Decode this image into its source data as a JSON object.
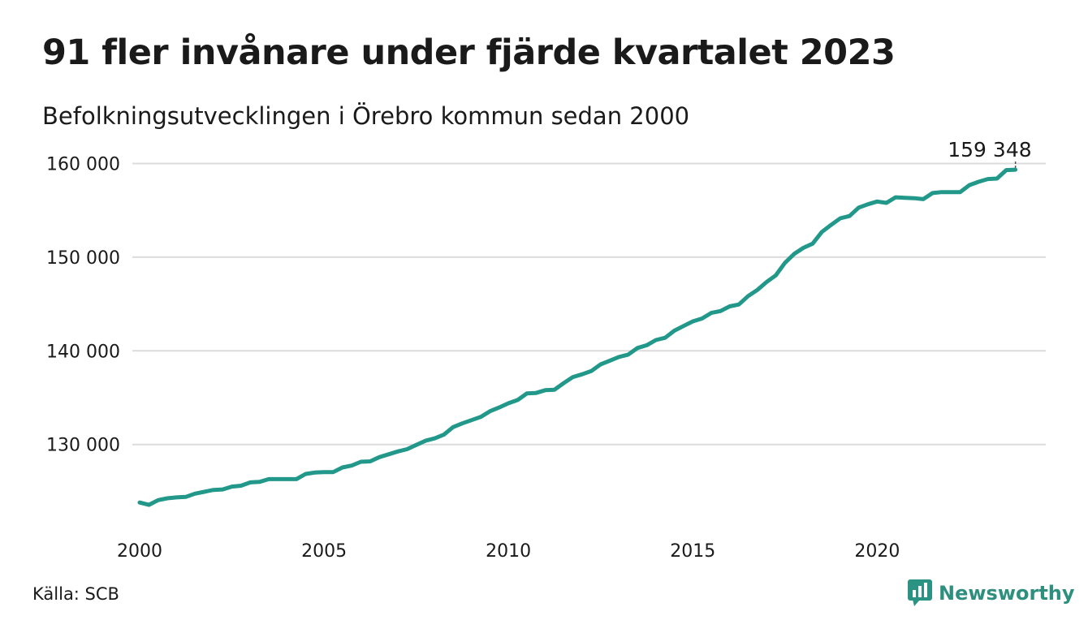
{
  "title": "91 fler invånare under fjärde kvartalet 2023",
  "subtitle": "Befolkningsutvecklingen i Örebro kommun sedan 2000",
  "source": "Källa: SCB",
  "brand": {
    "name": "Newsworthy",
    "color": "#2a9384"
  },
  "colors": {
    "line": "#21988a",
    "grid": "#dcdcdc"
  },
  "chart_data": {
    "type": "line",
    "title": "91 fler invånare under fjärde kvartalet 2023",
    "subtitle": "Befolkningsutvecklingen i Örebro kommun sedan 2000",
    "xlabel": "",
    "ylabel": "",
    "xlim": [
      2000,
      2024
    ],
    "ylim": [
      122000,
      161000
    ],
    "x_ticks": [
      2000,
      2005,
      2010,
      2015,
      2020
    ],
    "x_tick_labels": [
      "2000",
      "2005",
      "2010",
      "2015",
      "2020"
    ],
    "y_ticks": [
      130000,
      140000,
      150000,
      160000
    ],
    "y_tick_labels": [
      "130 000",
      "140 000",
      "150 000",
      "160 000"
    ],
    "grid": true,
    "annotation": {
      "x": 2023.75,
      "y": 159348,
      "label": "159 348"
    },
    "series": [
      {
        "x": [
          2000.0,
          2000.25,
          2000.5,
          2000.75,
          2001.0,
          2001.25,
          2001.5,
          2001.75,
          2002.0,
          2002.25,
          2002.5,
          2002.75,
          2003.0,
          2003.25,
          2003.5,
          2003.75,
          2004.0,
          2004.25,
          2004.5,
          2004.75,
          2005.0,
          2005.25,
          2005.5,
          2005.75,
          2006.0,
          2006.25,
          2006.5,
          2006.75,
          2007.0,
          2007.25,
          2007.5,
          2007.75,
          2008.0,
          2008.25,
          2008.5,
          2008.75,
          2009.0,
          2009.25,
          2009.5,
          2009.75,
          2010.0,
          2010.25,
          2010.5,
          2010.75,
          2011.0,
          2011.25,
          2011.5,
          2011.75,
          2012.0,
          2012.25,
          2012.5,
          2012.75,
          2013.0,
          2013.25,
          2013.5,
          2013.75,
          2014.0,
          2014.25,
          2014.5,
          2014.75,
          2015.0,
          2015.25,
          2015.5,
          2015.75,
          2016.0,
          2016.25,
          2016.5,
          2016.75,
          2017.0,
          2017.25,
          2017.5,
          2017.75,
          2018.0,
          2018.25,
          2018.5,
          2018.75,
          2019.0,
          2019.25,
          2019.5,
          2019.75,
          2020.0,
          2020.25,
          2020.5,
          2020.75,
          2021.0,
          2021.25,
          2021.5,
          2021.75,
          2022.0,
          2022.25,
          2022.5,
          2022.75,
          2023.0,
          2023.25,
          2023.5,
          2023.75
        ],
        "values": [
          123800,
          123550,
          124050,
          124250,
          124350,
          124400,
          124750,
          124950,
          125150,
          125200,
          125500,
          125600,
          125950,
          126000,
          126300,
          126300,
          126300,
          126300,
          126850,
          127000,
          127050,
          127050,
          127550,
          127750,
          128150,
          128200,
          128650,
          128950,
          129250,
          129500,
          129950,
          130400,
          130650,
          131050,
          131850,
          132250,
          132600,
          132950,
          133550,
          133950,
          134400,
          134750,
          135450,
          135500,
          135800,
          135850,
          136550,
          137200,
          137500,
          137850,
          138550,
          138950,
          139350,
          139600,
          140300,
          140600,
          141150,
          141400,
          142150,
          142650,
          143150,
          143450,
          144050,
          144250,
          144750,
          144950,
          145850,
          146500,
          147350,
          148050,
          149400,
          150350,
          151000,
          151450,
          152700,
          153450,
          154150,
          154400,
          155300,
          155650,
          155950,
          155800,
          156400,
          156350,
          156300,
          156200,
          156850,
          156950,
          156950,
          156950,
          157700,
          158050,
          158350,
          158400,
          159300,
          159348
        ]
      }
    ]
  }
}
